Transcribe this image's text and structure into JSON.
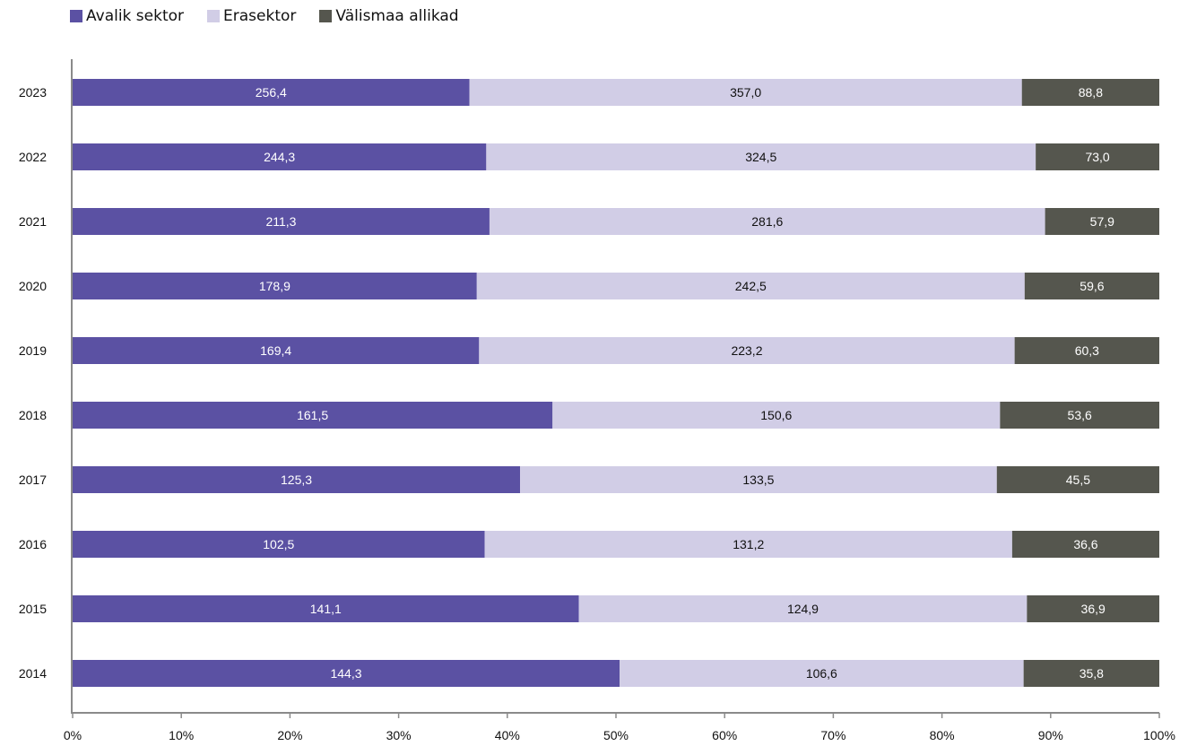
{
  "chart_data": {
    "type": "bar",
    "orientation": "horizontal",
    "stacked": "percent",
    "categories": [
      "2023",
      "2022",
      "2021",
      "2020",
      "2019",
      "2018",
      "2017",
      "2016",
      "2015",
      "2014"
    ],
    "series": [
      {
        "name": "Avalik sektor",
        "color": "#5b51a3",
        "label_color": "#ffffff",
        "values": [
          256.4,
          244.3,
          211.3,
          178.9,
          169.4,
          161.5,
          125.3,
          102.5,
          141.1,
          144.3
        ],
        "labels": [
          "256,4",
          "244,3",
          "211,3",
          "178,9",
          "169,4",
          "161,5",
          "125,3",
          "102,5",
          "141,1",
          "144,3"
        ]
      },
      {
        "name": "Erasektor",
        "color": "#d1cde6",
        "label_color": "#111111",
        "values": [
          357.0,
          324.5,
          281.6,
          242.5,
          223.2,
          150.6,
          133.5,
          131.2,
          124.9,
          106.6
        ],
        "labels": [
          "357,0",
          "324,5",
          "281,6",
          "242,5",
          "223,2",
          "150,6",
          "133,5",
          "131,2",
          "124,9",
          "106,6"
        ]
      },
      {
        "name": "Välismaa allikad",
        "color": "#55564e",
        "label_color": "#ffffff",
        "values": [
          88.8,
          73.0,
          57.9,
          59.6,
          60.3,
          53.6,
          45.5,
          36.6,
          36.9,
          35.8
        ],
        "labels": [
          "88,8",
          "73,0",
          "57,9",
          "59,6",
          "60,3",
          "53,6",
          "45,5",
          "36,6",
          "36,9",
          "35,8"
        ]
      }
    ],
    "x_ticks": [
      "0%",
      "10%",
      "20%",
      "30%",
      "40%",
      "50%",
      "60%",
      "70%",
      "80%",
      "90%",
      "100%"
    ],
    "xlim": [
      0,
      100
    ],
    "legend_position": "top-left",
    "grid": false
  }
}
